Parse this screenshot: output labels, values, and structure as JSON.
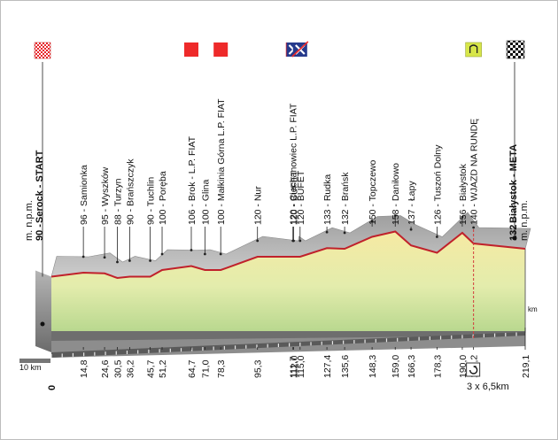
{
  "chart_data": {
    "type": "area",
    "title": "",
    "start_label": "Serock - START",
    "start_elev": "90",
    "start_unit": "m. n.p.m.",
    "finish_label": "Białystok - META",
    "finish_elev": "132",
    "finish_unit": "m. n.p.m.",
    "total_km": "219,1",
    "km_unit": "km",
    "scale_label": "10 km",
    "start_km_label": "0",
    "lap_label": "3 x 6,5km",
    "x_range": [
      0,
      219.1
    ],
    "points": [
      {
        "km": 0,
        "elev": 90,
        "dist": "0",
        "name": "Serock - START",
        "elev_label": "90",
        "icon": "flag-start"
      },
      {
        "km": 14.8,
        "elev": 96,
        "dist": "14,8",
        "name": "Samionka",
        "elev_label": "96"
      },
      {
        "km": 24.6,
        "elev": 95,
        "dist": "24,6",
        "name": "Wyszków",
        "elev_label": "95"
      },
      {
        "km": 30.5,
        "elev": 88,
        "dist": "30,5",
        "name": "Turzyn",
        "elev_label": "88"
      },
      {
        "km": 36.2,
        "elev": 90,
        "dist": "36,2",
        "name": "Brańszczyk",
        "elev_label": "90"
      },
      {
        "km": 45.7,
        "elev": 90,
        "dist": "45,7",
        "name": "Tuchlin",
        "elev_label": "90"
      },
      {
        "km": 51.2,
        "elev": 100,
        "dist": "51,2",
        "name": "Poręba",
        "elev_label": "100"
      },
      {
        "km": 64.7,
        "elev": 106,
        "dist": "64,7",
        "name": "Brok - L.P. FIAT",
        "elev_label": "106",
        "icon": "sprint"
      },
      {
        "km": 71.0,
        "elev": 100,
        "dist": "71,0",
        "name": "Glina",
        "elev_label": "100"
      },
      {
        "km": 78.3,
        "elev": 100,
        "dist": "78,3",
        "name": "Małkinia Górna L.P. FIAT",
        "elev_label": "100",
        "icon": "sprint"
      },
      {
        "km": 95.3,
        "elev": 120,
        "dist": "95,3",
        "name": "Nur",
        "elev_label": "120"
      },
      {
        "km": 111.7,
        "elev": 120,
        "dist": "111,7",
        "name": "Ciechanowiec L.P. FIAT",
        "elev_label": "120",
        "icon": "sprint"
      },
      {
        "km": 112.0,
        "elev": 120,
        "dist": "112,0",
        "name": "BUFET",
        "elev_label": "120",
        "icon": "feed"
      },
      {
        "km": 115.0,
        "elev": 120,
        "dist": "115,0",
        "name": "BUFET",
        "elev_label": "120",
        "icon": "feed-end"
      },
      {
        "km": 127.4,
        "elev": 133,
        "dist": "127,4",
        "name": "Rudka",
        "elev_label": "133"
      },
      {
        "km": 135.6,
        "elev": 132,
        "dist": "135,6",
        "name": "Brańsk",
        "elev_label": "132"
      },
      {
        "km": 148.3,
        "elev": 150,
        "dist": "148,3",
        "name": "Topczewo",
        "elev_label": "150"
      },
      {
        "km": 159.0,
        "elev": 158,
        "dist": "159,0",
        "name": "Daniłowo",
        "elev_label": "158"
      },
      {
        "km": 166.3,
        "elev": 137,
        "dist": "166,3",
        "name": "Łapy",
        "elev_label": "137"
      },
      {
        "km": 178.3,
        "elev": 126,
        "dist": "178,3",
        "name": "Tuszoń Dolny",
        "elev_label": "126"
      },
      {
        "km": 190.0,
        "elev": 156,
        "dist": "190,0",
        "name": "Białystok",
        "elev_label": "156"
      },
      {
        "km": 195.2,
        "elev": 140,
        "dist": "195,2",
        "name": "WJAZD NA RUNDĘ",
        "elev_label": "140",
        "icon": "lap"
      },
      {
        "km": 219.1,
        "elev": 132,
        "dist": "219,1",
        "name": "Białystok - META",
        "elev_label": "132",
        "icon": "flag-finish"
      }
    ],
    "icon_colors": {
      "sprint": "#ee2a2a",
      "feed_bg": "#263a8c",
      "lap": "#d7e64a",
      "profile_line": "#c0212b"
    }
  }
}
